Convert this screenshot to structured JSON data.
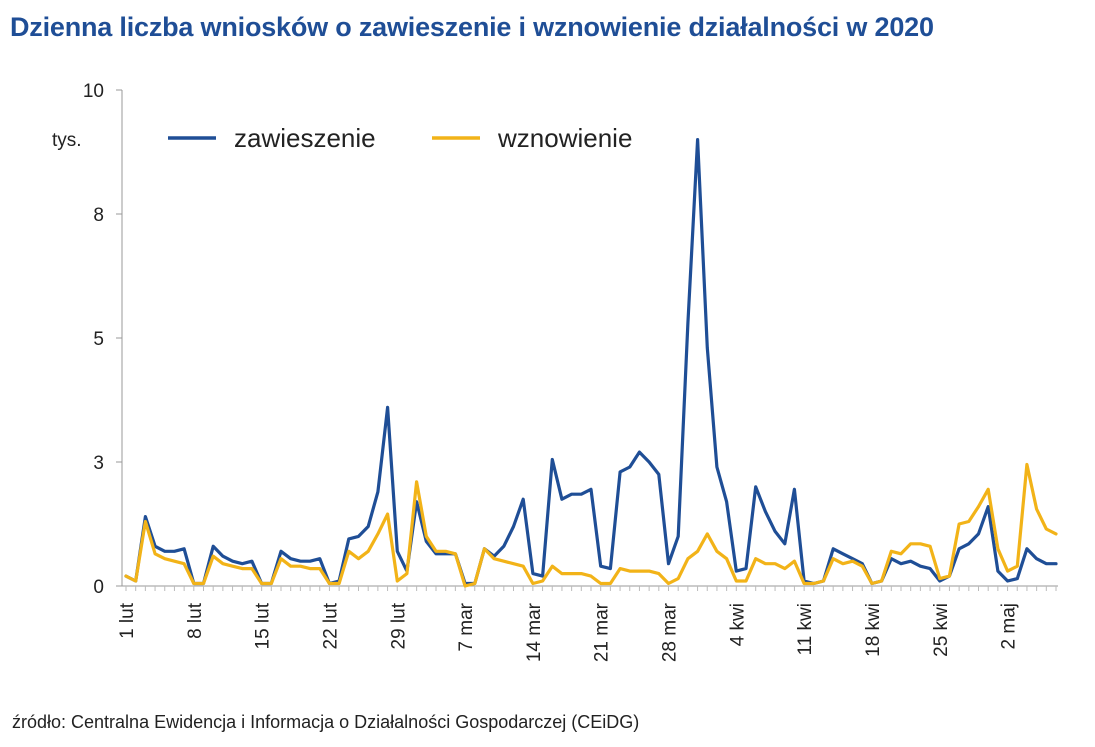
{
  "chart_data": {
    "type": "line",
    "title": "Dzienna liczba wniosków o zawieszenie i wznowienie działalności w 2020",
    "ylabel": "tys.",
    "xlabel": "",
    "ylim": [
      0,
      10
    ],
    "yticks": [
      {
        "value": 0,
        "label": "0"
      },
      {
        "value": 2.5,
        "label": "3"
      },
      {
        "value": 5,
        "label": "5"
      },
      {
        "value": 7.5,
        "label": "8"
      },
      {
        "value": 10,
        "label": "10"
      }
    ],
    "x_start_label": "1 lut",
    "xticks": [
      {
        "index": 0,
        "label": "1 lut"
      },
      {
        "index": 7,
        "label": "8 lut"
      },
      {
        "index": 14,
        "label": "15 lut"
      },
      {
        "index": 21,
        "label": "22 lut"
      },
      {
        "index": 28,
        "label": "29 lut"
      },
      {
        "index": 35,
        "label": "7 mar"
      },
      {
        "index": 42,
        "label": "14 mar"
      },
      {
        "index": 49,
        "label": "21 mar"
      },
      {
        "index": 56,
        "label": "28 mar"
      },
      {
        "index": 63,
        "label": "4 kwi"
      },
      {
        "index": 70,
        "label": "11 kwi"
      },
      {
        "index": 77,
        "label": "18 kwi"
      },
      {
        "index": 84,
        "label": "25 kwi"
      },
      {
        "index": 91,
        "label": "2 maj"
      }
    ],
    "legend_position": "top-left",
    "series": [
      {
        "name": "zawieszenie",
        "color": "#1f4e96",
        "values": [
          0.2,
          0.1,
          1.4,
          0.8,
          0.7,
          0.7,
          0.75,
          0.05,
          0.05,
          0.8,
          0.6,
          0.5,
          0.45,
          0.5,
          0.05,
          0.05,
          0.7,
          0.55,
          0.5,
          0.5,
          0.55,
          0.05,
          0.1,
          0.95,
          1.0,
          1.2,
          1.9,
          3.6,
          0.7,
          0.3,
          1.7,
          0.9,
          0.65,
          0.65,
          0.65,
          0.05,
          0.05,
          0.75,
          0.6,
          0.8,
          1.2,
          1.75,
          0.25,
          0.2,
          2.55,
          1.75,
          1.85,
          1.85,
          1.95,
          0.4,
          0.35,
          2.3,
          2.4,
          2.7,
          2.5,
          2.25,
          0.45,
          1.0,
          5.3,
          9.0,
          4.8,
          2.4,
          1.7,
          0.3,
          0.35,
          2.0,
          1.5,
          1.1,
          0.85,
          1.95,
          0.1,
          0.05,
          0.1,
          0.75,
          0.65,
          0.55,
          0.45,
          0.05,
          0.1,
          0.55,
          0.45,
          0.5,
          0.4,
          0.35,
          0.1,
          0.2,
          0.75,
          0.85,
          1.05,
          1.6,
          0.3,
          0.1,
          0.15,
          0.75,
          0.55,
          0.45,
          0.45
        ]
      },
      {
        "name": "wznowienie",
        "color": "#f2b318",
        "values": [
          0.2,
          0.1,
          1.3,
          0.65,
          0.55,
          0.5,
          0.45,
          0.05,
          0.05,
          0.6,
          0.45,
          0.4,
          0.35,
          0.35,
          0.05,
          0.05,
          0.55,
          0.4,
          0.4,
          0.35,
          0.35,
          0.05,
          0.05,
          0.7,
          0.55,
          0.7,
          1.05,
          1.45,
          0.1,
          0.25,
          2.1,
          1.0,
          0.7,
          0.7,
          0.65,
          0.0,
          0.05,
          0.75,
          0.55,
          0.5,
          0.45,
          0.4,
          0.05,
          0.1,
          0.4,
          0.25,
          0.25,
          0.25,
          0.2,
          0.05,
          0.05,
          0.35,
          0.3,
          0.3,
          0.3,
          0.25,
          0.05,
          0.15,
          0.55,
          0.7,
          1.05,
          0.7,
          0.55,
          0.1,
          0.1,
          0.55,
          0.45,
          0.45,
          0.35,
          0.5,
          0.05,
          0.05,
          0.1,
          0.55,
          0.45,
          0.5,
          0.4,
          0.05,
          0.1,
          0.7,
          0.65,
          0.85,
          0.85,
          0.8,
          0.15,
          0.2,
          1.25,
          1.3,
          1.6,
          1.95,
          0.75,
          0.3,
          0.4,
          2.45,
          1.55,
          1.15,
          1.05
        ]
      }
    ],
    "source": "źródło: Centralna Ewidencja i Informacja o Działalności Gospodarczej (CEiDG)"
  }
}
